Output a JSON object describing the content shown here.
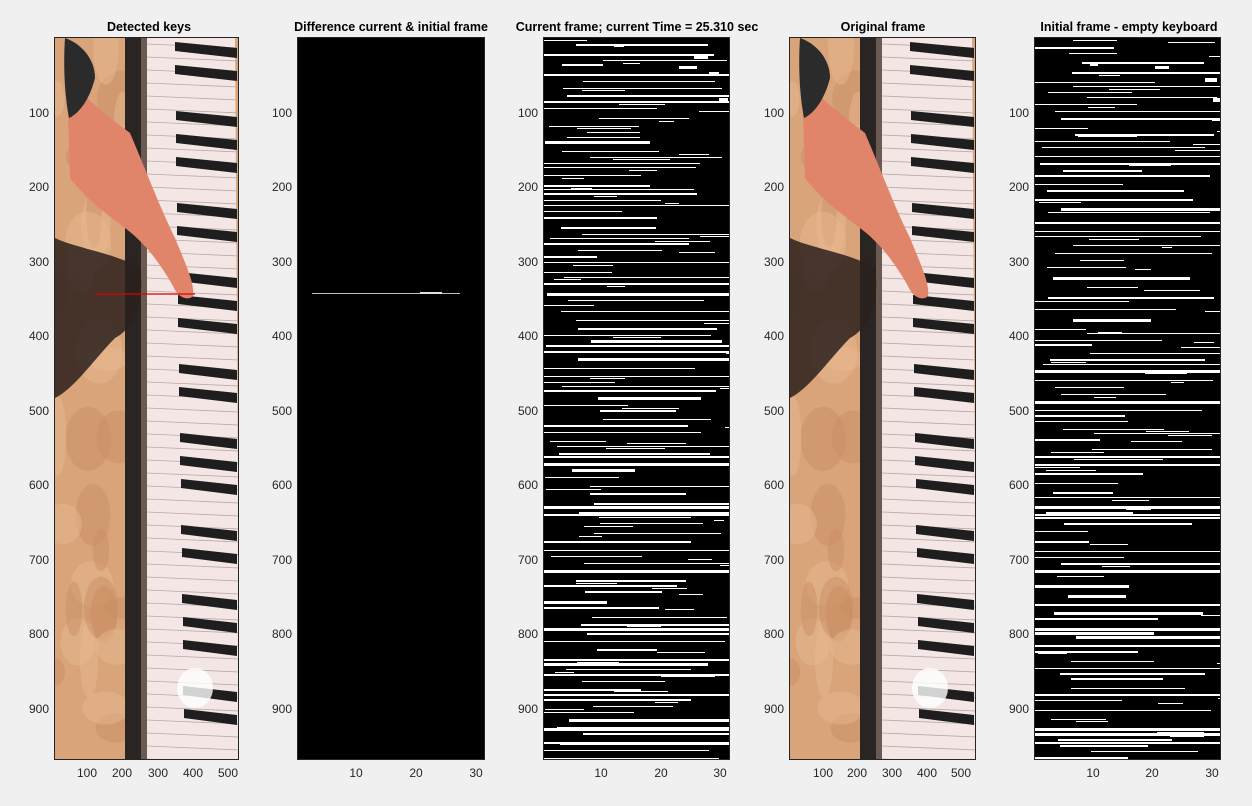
{
  "window": {
    "background": "#f0f0f0"
  },
  "panels": [
    {
      "id": "detected-keys",
      "title": "Detected keys",
      "kind": "photo",
      "x_ticks": [
        "100",
        "200",
        "300",
        "400",
        "500"
      ],
      "y_ticks": [
        "100",
        "200",
        "300",
        "400",
        "500",
        "600",
        "700",
        "800",
        "900"
      ],
      "overlay": "red-horizontal-line",
      "overlay_color": "#e00000"
    },
    {
      "id": "difference-frame",
      "title": "Difference current & initial frame",
      "kind": "black-with-line",
      "x_ticks": [
        "10",
        "20",
        "30"
      ],
      "y_ticks": [
        "100",
        "200",
        "300",
        "400",
        "500",
        "600",
        "700",
        "800",
        "900"
      ]
    },
    {
      "id": "current-frame",
      "title": "Current frame; current Time = 25.310 sec",
      "kind": "binary",
      "x_ticks": [
        "10",
        "20",
        "30"
      ],
      "y_ticks": [
        "100",
        "200",
        "300",
        "400",
        "500",
        "600",
        "700",
        "800",
        "900"
      ]
    },
    {
      "id": "original-frame",
      "title": "Original frame",
      "kind": "photo",
      "x_ticks": [
        "100",
        "200",
        "300",
        "400",
        "500"
      ],
      "y_ticks": [
        "100",
        "200",
        "300",
        "400",
        "500",
        "600",
        "700",
        "800",
        "900"
      ]
    },
    {
      "id": "initial-frame",
      "title": "Initial frame - empty keyboard",
      "kind": "binary",
      "x_ticks": [
        "10",
        "20",
        "30"
      ],
      "y_ticks": [
        "100",
        "200",
        "300",
        "400",
        "500",
        "600",
        "700",
        "800",
        "900"
      ]
    }
  ],
  "colors": {
    "axis": "#262626",
    "wood": "#d9a47a",
    "skin": "#e0856a",
    "white_key": "#f3e6e4",
    "black_key": "#1e1e1e"
  }
}
